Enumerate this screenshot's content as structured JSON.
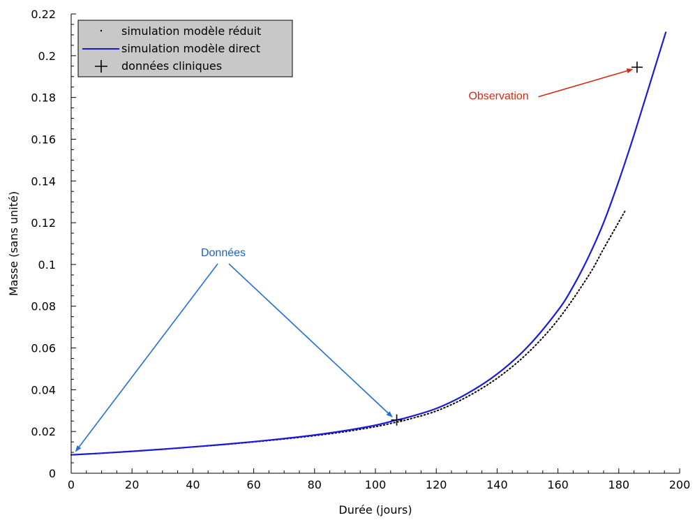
{
  "chart_data": {
    "type": "line",
    "xlabel": "Durée (jours)",
    "ylabel": "Masse (sans unité)",
    "xlim": [
      0,
      200
    ],
    "ylim": [
      0,
      0.22
    ],
    "x_ticks": [
      0,
      20,
      40,
      60,
      80,
      100,
      120,
      140,
      160,
      180,
      200
    ],
    "y_ticks": [
      0,
      0.02,
      0.04,
      0.06,
      0.08,
      0.1,
      0.12,
      0.14,
      0.16,
      0.18,
      0.2,
      0.22
    ],
    "x_tick_labels": [
      "0",
      "20",
      "40",
      "60",
      "80",
      "100",
      "120",
      "140",
      "160",
      "180",
      "200"
    ],
    "y_tick_labels": [
      "0",
      "0.02",
      "0.04",
      "0.06",
      "0.08",
      "0.1",
      "0.12",
      "0.14",
      "0.16",
      "0.18",
      "0.2",
      "0.22"
    ],
    "grid": false,
    "legend_position": "top-left",
    "series": [
      {
        "name": "simulation modèle réduit",
        "style": "dotted",
        "color": "#000000",
        "x": [
          0,
          10,
          20,
          30,
          40,
          50,
          60,
          70,
          80,
          90,
          100,
          107,
          110,
          120,
          130,
          140,
          150,
          160,
          170,
          175,
          182
        ],
        "y": [
          0.0088,
          0.0096,
          0.0105,
          0.0115,
          0.0126,
          0.0137,
          0.015,
          0.0164,
          0.018,
          0.0199,
          0.0223,
          0.0245,
          0.0255,
          0.0298,
          0.0365,
          0.0455,
          0.0575,
          0.0735,
          0.0945,
          0.1075,
          0.1255
        ]
      },
      {
        "name": "simulation modèle direct",
        "style": "solid",
        "color": "#1a1adc",
        "x": [
          0,
          10,
          20,
          30,
          40,
          50,
          60,
          70,
          80,
          90,
          100,
          107,
          110,
          120,
          130,
          140,
          150,
          160,
          165,
          170,
          175,
          180,
          185,
          190,
          195.5
        ],
        "y": [
          0.0088,
          0.0096,
          0.0105,
          0.0115,
          0.0126,
          0.0138,
          0.0151,
          0.0166,
          0.0183,
          0.0204,
          0.023,
          0.0255,
          0.0265,
          0.031,
          0.038,
          0.0475,
          0.0605,
          0.078,
          0.0895,
          0.1035,
          0.12,
          0.14,
          0.162,
          0.1855,
          0.2115
        ]
      },
      {
        "name": "données cliniques",
        "style": "marker-plus",
        "color": "#000000",
        "x": [
          107,
          186
        ],
        "y": [
          0.0255,
          0.1945
        ]
      }
    ],
    "annotations": [
      {
        "text": "Données",
        "color": "#1f5fc0",
        "x": 50,
        "y": 0.104,
        "arrows_to": [
          [
            1.5,
            0.0105
          ],
          [
            105.5,
            0.027
          ]
        ]
      },
      {
        "text": "Observation",
        "color": "#d42a12",
        "x": 140.5,
        "y": 0.179,
        "arrows_to": [
          [
            184.5,
            0.1935
          ]
        ]
      }
    ]
  }
}
